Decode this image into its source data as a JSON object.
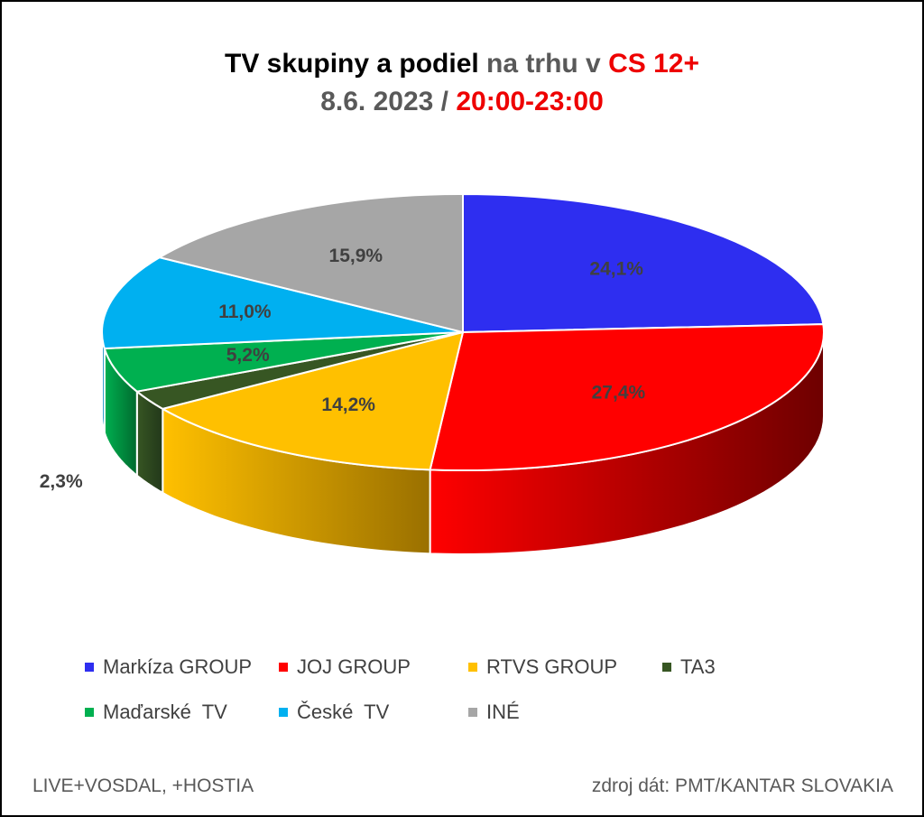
{
  "title": {
    "line1_part1": "TV skupiny a podiel",
    "line1_part2": " na trhu v ",
    "line1_part3": "CS 12+",
    "line2_part1": "8.6. 2023 / ",
    "line2_part2": "20:00-23:00"
  },
  "colors": {
    "title_black": "#000000",
    "title_gray": "#595959",
    "title_red": "#ee0000"
  },
  "chart_data": {
    "type": "pie",
    "style": "3d",
    "legend_position": "bottom",
    "slices": [
      {
        "name": "Markíza GROUP",
        "value": 24.1,
        "label": "24,1%",
        "color": "#2e2ef0",
        "dark": "#1a1a8c"
      },
      {
        "name": "JOJ GROUP",
        "value": 27.4,
        "label": "27,4%",
        "color": "#ff0000",
        "dark": "#6e0000"
      },
      {
        "name": "RTVS GROUP",
        "value": 14.2,
        "label": "14,2%",
        "color": "#ffc000",
        "dark": "#9a7000"
      },
      {
        "name": "TA3",
        "value": 2.3,
        "label": "2,3%",
        "color": "#375623",
        "dark": "#22381a"
      },
      {
        "name": "Maďarské  TV",
        "value": 5.2,
        "label": "5,2%",
        "color": "#00b050",
        "dark": "#006a2e"
      },
      {
        "name": "České  TV",
        "value": 11.0,
        "label": "11,0%",
        "color": "#00b0f0",
        "dark": "#006890"
      },
      {
        "name": "INÉ",
        "value": 15.9,
        "label": "15,9%",
        "color": "#a6a6a6",
        "dark": "#666666"
      }
    ]
  },
  "footer": {
    "left": "LIVE+VOSDAL,  +HOSTIA",
    "right": "zdroj dát: PMT/KANTAR SLOVAKIA"
  }
}
